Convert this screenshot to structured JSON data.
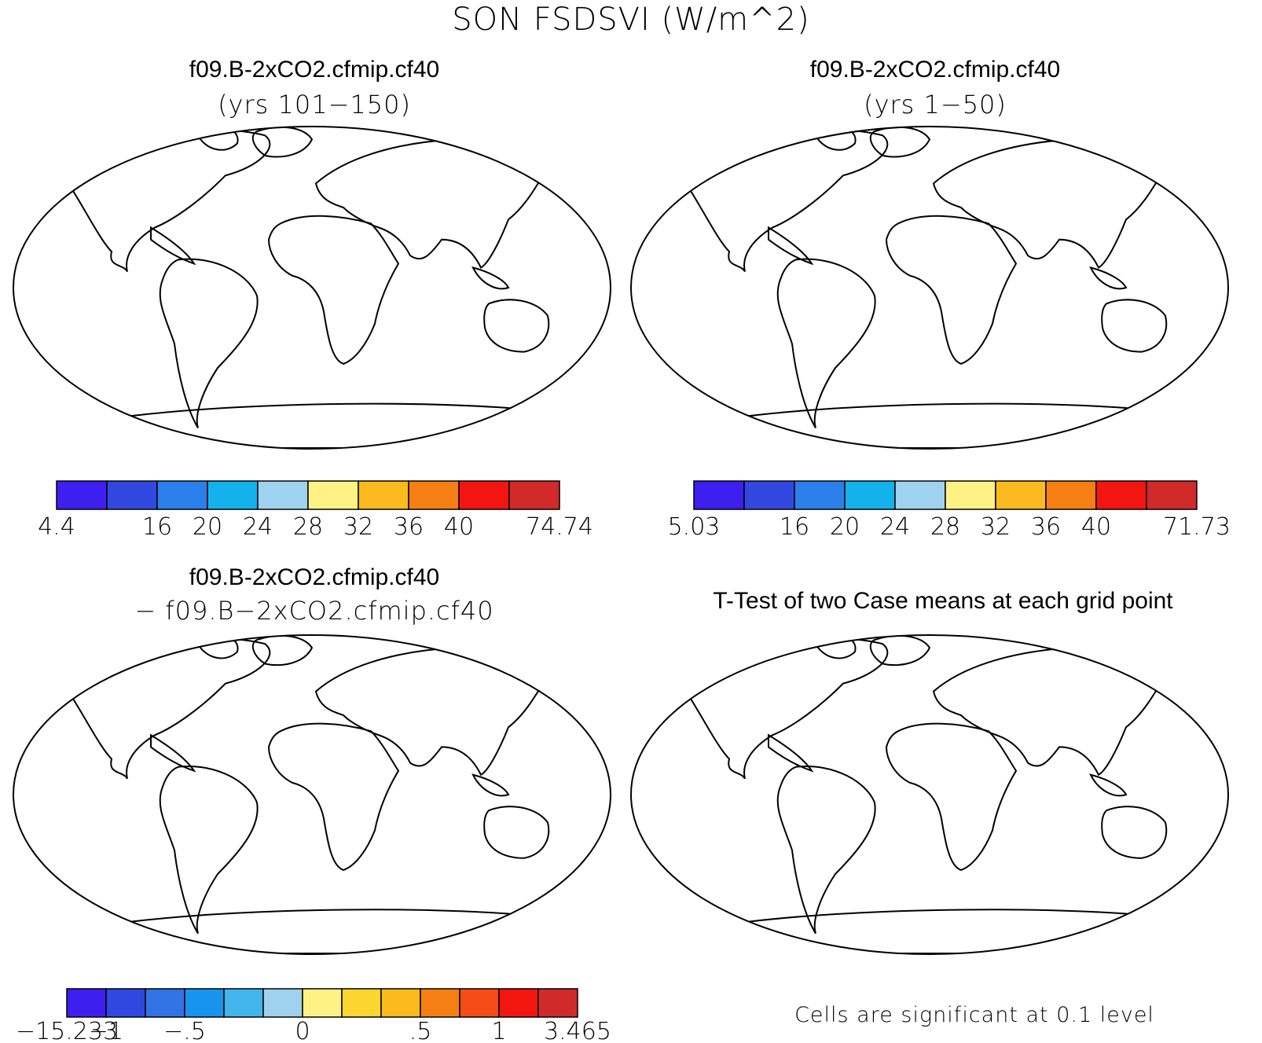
{
  "main_title": "SON FSDSVI (W/m^2)",
  "colors": {
    "scale_abs": [
      "#3f1ef0",
      "#3048e0",
      "#2a7fea",
      "#13b2ec",
      "#9fd2ee",
      "#fff284",
      "#fbbb1e",
      "#f57f12",
      "#f21510",
      "#d02a2a"
    ],
    "scale_diff": [
      "#3f1ef0",
      "#3048e0",
      "#3273e6",
      "#1795ee",
      "#42b5ec",
      "#9fd2ee",
      "#fff284",
      "#fcd531",
      "#fbbb1e",
      "#f57f12",
      "#f54d15",
      "#f21510",
      "#d02a2a"
    ],
    "ocean": "#ffffff",
    "significant": "#ff0000"
  },
  "panels": [
    {
      "id": "top-left",
      "title": "f09.B-2xCO2.cfmip.cf40",
      "subtitle": "(yrs 101−150)",
      "colorbar_labels": [
        "4.4",
        "",
        "16",
        "20",
        "24",
        "28",
        "32",
        "36",
        "40",
        "",
        "74.74"
      ]
    },
    {
      "id": "top-right",
      "title": "f09.B-2xCO2.cfmip.cf40",
      "subtitle": "(yrs 1−50)",
      "colorbar_labels": [
        "5.03",
        "",
        "16",
        "20",
        "24",
        "28",
        "32",
        "36",
        "40",
        "",
        "71.73"
      ]
    },
    {
      "id": "bottom-left",
      "title": "f09.B-2xCO2.cfmip.cf40",
      "subtitle": "− f09.B−2xCO2.cfmip.cf40",
      "colorbar_labels": [
        "−15.233",
        "−1",
        "",
        "−.5",
        "",
        "",
        "0",
        "",
        "",
        ".5",
        "",
        "1",
        "",
        "3.465"
      ]
    },
    {
      "id": "bottom-right",
      "title": "T-Test of two Case means at each grid point",
      "footnote": "Cells are significant at 0.1 level"
    }
  ]
}
